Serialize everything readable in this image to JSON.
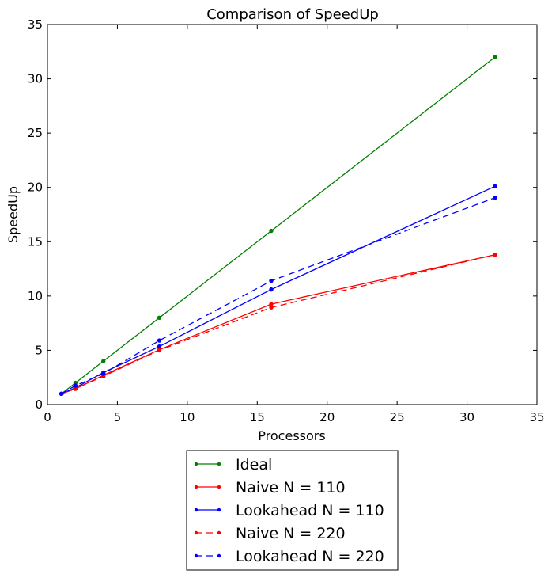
{
  "chart_data": {
    "type": "line",
    "title": "Comparison of SpeedUp",
    "xlabel": "Processors",
    "ylabel": "SpeedUp",
    "xlim": [
      0,
      35
    ],
    "ylim": [
      0,
      35
    ],
    "xticks": [
      0,
      5,
      10,
      15,
      20,
      25,
      30,
      35
    ],
    "yticks": [
      0,
      5,
      10,
      15,
      20,
      25,
      30,
      35
    ],
    "grid": false,
    "legend_position": "bottom-center outside",
    "series": [
      {
        "name": "Ideal",
        "color": "#008000",
        "dashed": false,
        "x": [
          1,
          2,
          4,
          8,
          16,
          32
        ],
        "y": [
          1,
          2,
          4,
          8,
          16,
          32
        ]
      },
      {
        "name": "Naive N = 110",
        "color": "#ff0000",
        "dashed": false,
        "x": [
          1,
          2,
          4,
          8,
          16,
          32
        ],
        "y": [
          1,
          1.45,
          2.7,
          5.05,
          9.25,
          13.8
        ]
      },
      {
        "name": "Lookahead N = 110",
        "color": "#0000ff",
        "dashed": false,
        "x": [
          1,
          2,
          4,
          8,
          16,
          32
        ],
        "y": [
          1,
          1.55,
          2.95,
          5.35,
          10.6,
          20.1
        ]
      },
      {
        "name": "Naive N = 220",
        "color": "#ff0000",
        "dashed": true,
        "x": [
          1,
          2,
          4,
          8,
          16,
          32
        ],
        "y": [
          1,
          1.5,
          2.6,
          5.0,
          8.95,
          13.8
        ]
      },
      {
        "name": "Lookahead N = 220",
        "color": "#0000ff",
        "dashed": true,
        "x": [
          1,
          2,
          4,
          8,
          16,
          32
        ],
        "y": [
          1,
          1.75,
          2.85,
          5.9,
          11.4,
          19.05
        ]
      }
    ]
  }
}
